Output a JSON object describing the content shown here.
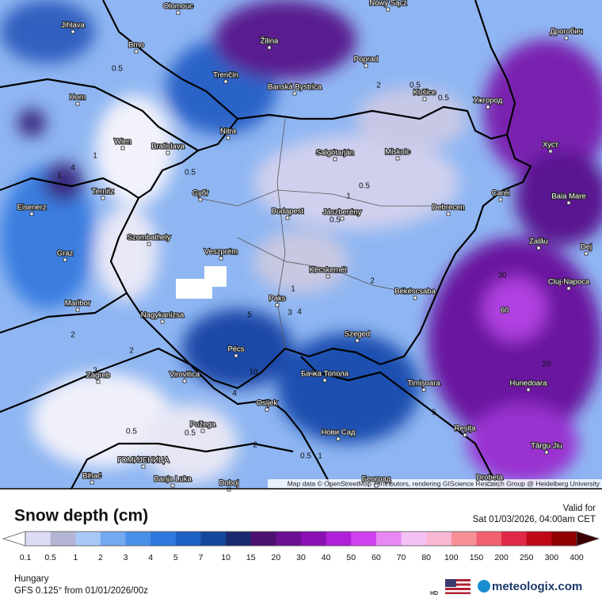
{
  "legend": {
    "title": "Snow depth (cm)",
    "labels": [
      0.1,
      0.5,
      1,
      2,
      3,
      4,
      5,
      7,
      10,
      15,
      20,
      30,
      40,
      50,
      60,
      70,
      80,
      100,
      150,
      200,
      250,
      300,
      400
    ],
    "colors": [
      "#dcdcf6",
      "#b4b4d4",
      "#a8c8f8",
      "#74a8f0",
      "#4a90e8",
      "#2e78e0",
      "#1c60c4",
      "#14489c",
      "#1a2a70",
      "#4c1070",
      "#6a1090",
      "#8a10b4",
      "#b020d8",
      "#d040f0",
      "#e888f4",
      "#f4c0f4",
      "#f8b8d4",
      "#f89098",
      "#f06070",
      "#e02848",
      "#c00818",
      "#900000"
    ]
  },
  "valid": {
    "label": "Valid for",
    "time": "Sat 01/03/2026, 04:00am CET"
  },
  "footer": {
    "region": "Hungary",
    "model": "GFS 0.125° from 01/01/2026/00z",
    "hd": "HD",
    "brand": "meteologix.com"
  },
  "attribution": "Map data © OpenStreetMap contributors, rendering GIScience Research Group @ Heidelberg University",
  "cities": [
    "Olomouc",
    "Nowy Sącz",
    "Jihlava",
    "Brno",
    "Žilina",
    "Poprad",
    "Дрогобич",
    "Trenčín",
    "Banská Bystrica",
    "Košice",
    "Ужгород",
    "Horn",
    "Nitra",
    "Wien",
    "Bratislava",
    "Salgótarján",
    "Miskolc",
    "Хуст",
    "Ternitz",
    "Győr",
    "Carei",
    "Baia Mare",
    "Eisenerz",
    "Budapest",
    "Jászberény",
    "Debrecen",
    "Szombathely",
    "Zalău",
    "Graz",
    "Veszprém",
    "Dej",
    "Kecskemét",
    "Cluj-Napoca",
    "Maribor",
    "Paks",
    "Békéscsaba",
    "Nagykanizsa",
    "Szeged",
    "Pécs",
    "Бачка Топола",
    "Virovitica",
    "Zagreb",
    "Timișoara",
    "Hunedoara",
    "Osijek",
    "Reșița",
    "Požega",
    "Нови Сад",
    "Târgu Jiu",
    "ГОМИЈЕНИЦА",
    "Bihać",
    "Banja Luka",
    "Doboj",
    "Београд",
    "Drobeta"
  ],
  "contour_labels": [
    0.5,
    0.5,
    0.5,
    0.5,
    0.5,
    0.5,
    0.5,
    0.5,
    1,
    1,
    1,
    1,
    2,
    2,
    2,
    2,
    3,
    3,
    4,
    4,
    5,
    5,
    60,
    20,
    30,
    10,
    4,
    0.5,
    1,
    2
  ]
}
